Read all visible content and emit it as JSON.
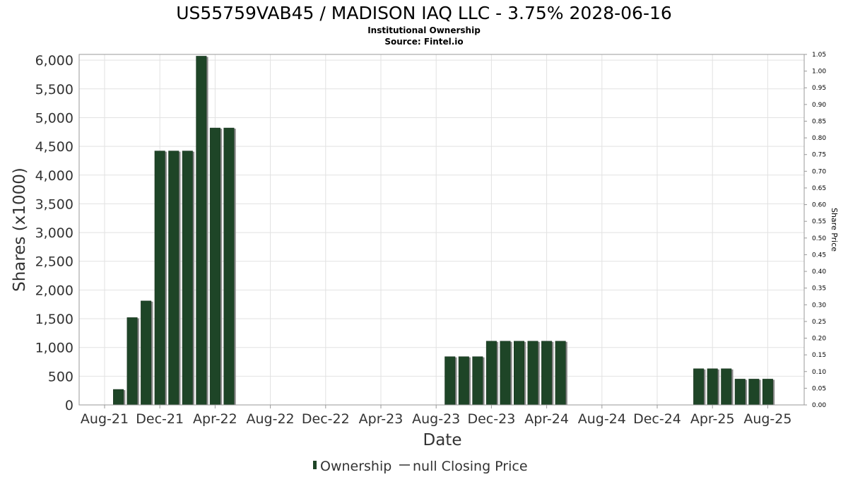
{
  "title": "US55759VAB45 / MADISON IAQ LLC - 3.75% 2028-06-16",
  "subtitle": "Institutional Ownership",
  "source": "Source: Fintel.io",
  "chart_data": {
    "type": "bar",
    "xlabel": "Date",
    "ylabel": "Shares (x1000)",
    "y2label": "Share Price",
    "ylim": [
      0,
      6100
    ],
    "y2lim": [
      0,
      1.05
    ],
    "grid": true,
    "legend_position": "bottom",
    "yticks": [
      "0",
      "500",
      "1,000",
      "1,500",
      "2,000",
      "2,500",
      "3,000",
      "3,500",
      "4,000",
      "4,500",
      "5,000",
      "5,500",
      "6,000"
    ],
    "y2ticks": [
      "0.00",
      "0.05",
      "0.10",
      "0.15",
      "0.20",
      "0.25",
      "0.30",
      "0.35",
      "0.40",
      "0.45",
      "0.50",
      "0.55",
      "0.60",
      "0.65",
      "0.70",
      "0.75",
      "0.80",
      "0.85",
      "0.90",
      "0.95",
      "1.00",
      "1.05"
    ],
    "xticks": [
      "Aug-21",
      "Dec-21",
      "Apr-22",
      "Aug-22",
      "Dec-22",
      "Apr-23",
      "Aug-23",
      "Dec-23",
      "Apr-24",
      "Aug-24",
      "Dec-24",
      "Apr-25",
      "Aug-25"
    ],
    "series": [
      {
        "name": "Ownership",
        "color": "#1e4527",
        "points": [
          {
            "x": "Sep-21",
            "y": 270
          },
          {
            "x": "Oct-21",
            "y": 1520
          },
          {
            "x": "Nov-21",
            "y": 1810
          },
          {
            "x": "Dec-21",
            "y": 4420
          },
          {
            "x": "Jan-22",
            "y": 4420
          },
          {
            "x": "Feb-22",
            "y": 4420
          },
          {
            "x": "Mar-22",
            "y": 6070
          },
          {
            "x": "Apr-22",
            "y": 4820
          },
          {
            "x": "May-22",
            "y": 4820
          },
          {
            "x": "Sep-23",
            "y": 840
          },
          {
            "x": "Oct-23",
            "y": 840
          },
          {
            "x": "Nov-23",
            "y": 840
          },
          {
            "x": "Dec-23",
            "y": 1110
          },
          {
            "x": "Jan-24",
            "y": 1110
          },
          {
            "x": "Feb-24",
            "y": 1110
          },
          {
            "x": "Mar-24",
            "y": 1110
          },
          {
            "x": "Apr-24",
            "y": 1110
          },
          {
            "x": "May-24",
            "y": 1110
          },
          {
            "x": "Mar-25",
            "y": 630
          },
          {
            "x": "Apr-25",
            "y": 630
          },
          {
            "x": "May-25",
            "y": 630
          },
          {
            "x": "Jun-25",
            "y": 450
          },
          {
            "x": "Jul-25",
            "y": 450
          },
          {
            "x": "Aug-25",
            "y": 450
          }
        ]
      },
      {
        "name": "null Closing Price",
        "color": "#333333",
        "points": []
      }
    ]
  }
}
